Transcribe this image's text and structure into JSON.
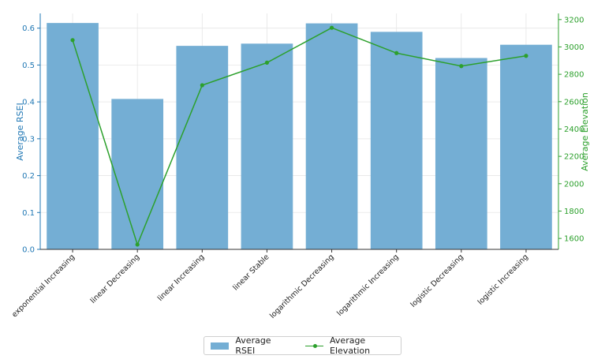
{
  "chart_data": {
    "type": "bar",
    "categories": [
      "exponential Increasing",
      "linear Decreasing",
      "linear Increasing",
      "linear Stable",
      "logarithmic Decreasing",
      "logarithmic Increasing",
      "logistic Decreasing",
      "logistic Increasing"
    ],
    "series": [
      {
        "name": "Average RSEI",
        "type": "bar",
        "axis": "left",
        "color": "#74aed4",
        "values": [
          0.614,
          0.408,
          0.552,
          0.558,
          0.613,
          0.59,
          0.519,
          0.555
        ]
      },
      {
        "name": "Average Elevation",
        "type": "line",
        "axis": "right",
        "color": "#2ca02c",
        "values": [
          3050,
          1555,
          2720,
          2885,
          3140,
          2955,
          2860,
          2935
        ]
      }
    ],
    "ylabel": "Average RSEI",
    "y2label": "Average Elevation",
    "ylim": [
      0,
      0.64
    ],
    "y2lim": [
      1520,
      3245
    ],
    "yticks": [
      0.0,
      0.1,
      0.2,
      0.3,
      0.4,
      0.5,
      0.6
    ],
    "y2ticks": [
      1600,
      1800,
      2000,
      2200,
      2400,
      2600,
      2800,
      3000,
      3200
    ],
    "left_axis_color": "#1f77b4",
    "right_axis_color": "#2ca02c",
    "grid": true,
    "legend_position": "bottom-center"
  }
}
